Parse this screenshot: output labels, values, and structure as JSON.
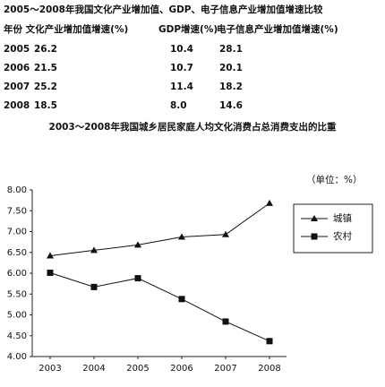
{
  "table": {
    "title": "2005～2008年我国文化产业增加值、GDP、电子信息产业增加值增速比较",
    "header": [
      "年份 文化产业增加值增速(%)",
      "GDP增速(%)",
      "电子信息产业增加值增速(%)"
    ],
    "rows": [
      [
        "2005",
        "26.2",
        "10.4",
        "28.1"
      ],
      [
        "2006",
        "21.5",
        "10.7",
        "20.1"
      ],
      [
        "2007",
        "25.2",
        "11.4",
        "18.2"
      ],
      [
        "2008",
        "18.5",
        "8.0",
        "14.6"
      ]
    ]
  },
  "chart_data": {
    "type": "line",
    "title": "2003～2008年我国城乡居民家庭人均文化消费占总消费支出的比重",
    "annotation": "（单位：%）",
    "categories": [
      "2003",
      "2004",
      "2005",
      "2006",
      "2007",
      "2008"
    ],
    "series": [
      {
        "name": "城镇",
        "color": "#111111",
        "marker": "triangle",
        "values": [
          6.42,
          6.55,
          6.68,
          6.87,
          6.93,
          7.68
        ]
      },
      {
        "name": "农村",
        "color": "#111111",
        "marker": "square",
        "values": [
          6.01,
          5.67,
          5.88,
          5.38,
          4.84,
          4.37
        ]
      }
    ],
    "ylim": [
      4.0,
      8.0
    ],
    "yticks": [
      {
        "value": 4.0,
        "label": "4.00"
      },
      {
        "value": 4.5,
        "label": "4.50"
      },
      {
        "value": 5.0,
        "label": "5.00"
      },
      {
        "value": 5.5,
        "label": "5.50"
      },
      {
        "value": 6.0,
        "label": "6.00"
      },
      {
        "value": 6.5,
        "label": "6.50"
      },
      {
        "value": 7.0,
        "label": "7.00"
      },
      {
        "value": 7.5,
        "label": "7.50"
      },
      {
        "value": 8.0,
        "label": "8.00"
      }
    ],
    "legend": "upper right"
  }
}
